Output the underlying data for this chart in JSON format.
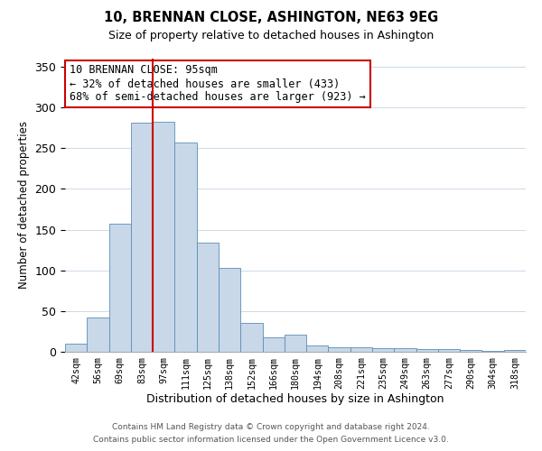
{
  "title": "10, BRENNAN CLOSE, ASHINGTON, NE63 9EG",
  "subtitle": "Size of property relative to detached houses in Ashington",
  "xlabel": "Distribution of detached houses by size in Ashington",
  "ylabel": "Number of detached properties",
  "bar_labels": [
    "42sqm",
    "56sqm",
    "69sqm",
    "83sqm",
    "97sqm",
    "111sqm",
    "125sqm",
    "138sqm",
    "152sqm",
    "166sqm",
    "180sqm",
    "194sqm",
    "208sqm",
    "221sqm",
    "235sqm",
    "249sqm",
    "263sqm",
    "277sqm",
    "290sqm",
    "304sqm",
    "318sqm"
  ],
  "bar_heights": [
    10,
    42,
    157,
    281,
    283,
    257,
    134,
    103,
    36,
    18,
    21,
    8,
    6,
    5,
    4,
    4,
    3,
    3,
    2,
    1,
    2
  ],
  "bar_color": "#c8d8e8",
  "bar_edge_color": "#5b8db8",
  "vline_color": "#cc0000",
  "vline_x": 3.5,
  "ylim": [
    0,
    360
  ],
  "yticks": [
    0,
    50,
    100,
    150,
    200,
    250,
    300,
    350
  ],
  "annotation_title": "10 BRENNAN CLOSE: 95sqm",
  "annotation_line1": "← 32% of detached houses are smaller (433)",
  "annotation_line2": "68% of semi-detached houses are larger (923) →",
  "annotation_box_color": "#ffffff",
  "annotation_box_edge": "#cc0000",
  "footer_line1": "Contains HM Land Registry data © Crown copyright and database right 2024.",
  "footer_line2": "Contains public sector information licensed under the Open Government Licence v3.0.",
  "background_color": "#ffffff",
  "grid_color": "#ccd9e6"
}
